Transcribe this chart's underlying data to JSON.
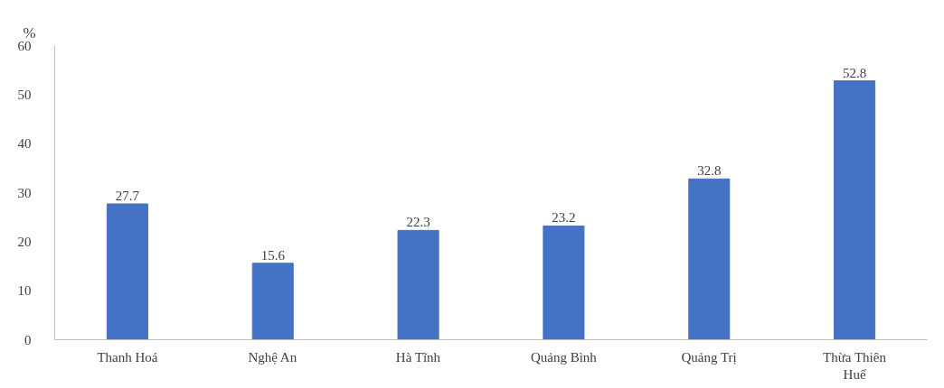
{
  "chart_data": {
    "type": "bar",
    "ylabel": "%",
    "categories": [
      "Thanh Hoá",
      "Nghệ An",
      "Hà Tĩnh",
      "Quảng Bình",
      "Quảng Trị",
      "Thừa Thiên Huế"
    ],
    "values": [
      27.7,
      15.6,
      22.3,
      23.2,
      32.8,
      52.8
    ],
    "color": "#4472c4",
    "ylim": [
      0,
      60
    ],
    "yticks": [
      0,
      10,
      20,
      30,
      40,
      50,
      60
    ],
    "data_labels": true
  }
}
